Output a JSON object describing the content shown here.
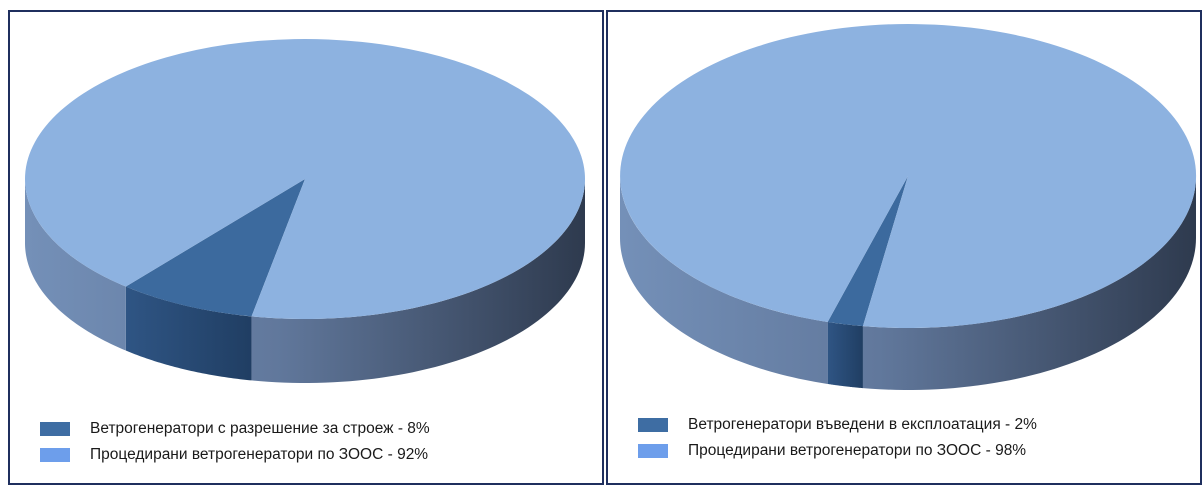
{
  "colors": {
    "small_slice": "#3c6a9e",
    "large_slice": "#8db2e0",
    "legend_small": "#3e6da3",
    "legend_large": "#6d9eeb",
    "panel_border": "#1f2f5e"
  },
  "chart_data": [
    {
      "type": "pie",
      "style": "3d",
      "title": "",
      "series": [
        {
          "label": "Ветрогенератори с разрешение за строеж - 8%",
          "value": 8,
          "color": "#3c6a9e"
        },
        {
          "label": "Процедирани ветрогенератори по ЗООС - 92%",
          "value": 92,
          "color": "#8db2e0"
        }
      ],
      "legend_position": "bottom-left"
    },
    {
      "type": "pie",
      "style": "3d",
      "title": "",
      "series": [
        {
          "label": "Ветрогенератори въведени в експлоатация - 2%",
          "value": 2,
          "color": "#3c6a9e"
        },
        {
          "label": "Процедирани ветрогенератори по ЗООС - 98%",
          "value": 98,
          "color": "#8db2e0"
        }
      ],
      "legend_position": "bottom-left"
    }
  ]
}
